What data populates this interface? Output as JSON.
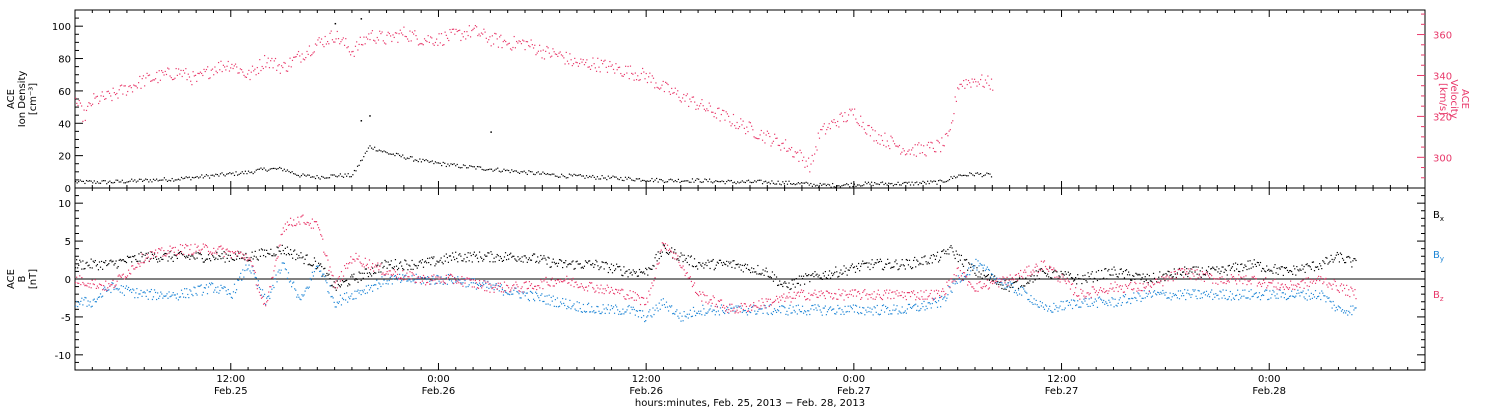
{
  "chart_data": [
    {
      "type": "scatter",
      "title": "",
      "x_range_hours": [
        0,
        78
      ],
      "ylim": [
        0,
        110
      ],
      "ylabel_lines": [
        "ACE",
        "Ion Density",
        "[cm⁻³]"
      ],
      "yticks": [
        0,
        20,
        40,
        60,
        80,
        100
      ],
      "ylim_right": [
        285,
        372
      ],
      "ylabel_right_lines": [
        "ACE",
        "Velocity",
        "[km/s]"
      ],
      "yticks_right": [
        300,
        320,
        340,
        360
      ],
      "series": [
        {
          "name": "",
          "axis": "left",
          "color": "#000000",
          "points": [
            [
              0,
              4
            ],
            [
              2,
              4
            ],
            [
              4,
              5
            ],
            [
              6,
              6
            ],
            [
              8,
              8
            ],
            [
              10,
              10
            ],
            [
              11,
              12
            ],
            [
              12,
              12
            ],
            [
              13,
              8
            ],
            [
              14,
              7
            ],
            [
              15,
              8
            ],
            [
              16,
              8
            ],
            [
              17,
              26
            ],
            [
              18,
              22
            ],
            [
              20,
              17
            ],
            [
              22,
              14
            ],
            [
              24,
              12
            ],
            [
              26,
              10
            ],
            [
              28,
              8
            ],
            [
              30,
              7
            ],
            [
              32,
              6
            ],
            [
              34,
              5
            ],
            [
              36,
              5
            ],
            [
              38,
              4
            ],
            [
              40,
              4
            ],
            [
              42,
              3
            ],
            [
              43,
              2
            ],
            [
              44,
              2
            ],
            [
              46,
              3
            ],
            [
              48,
              3
            ],
            [
              50,
              4
            ],
            [
              51,
              8
            ],
            [
              52,
              9
            ],
            [
              53,
              8
            ]
          ],
          "outliers": [
            [
              16.5,
              105
            ],
            [
              17,
              45
            ],
            [
              16.5,
              42
            ],
            [
              15,
              102
            ],
            [
              24,
              35
            ]
          ]
        },
        {
          "name": "",
          "axis": "right",
          "color": "#e8386a",
          "points": [
            [
              0,
              328
            ],
            [
              0.5,
              320
            ],
            [
              1,
              328
            ],
            [
              2,
              330
            ],
            [
              3,
              334
            ],
            [
              4,
              338
            ],
            [
              5,
              340
            ],
            [
              6,
              342
            ],
            [
              7,
              338
            ],
            [
              8,
              344
            ],
            [
              9,
              346
            ],
            [
              10,
              340
            ],
            [
              11,
              348
            ],
            [
              12,
              344
            ],
            [
              13,
              350
            ],
            [
              14,
              356
            ],
            [
              15,
              360
            ],
            [
              16,
              352
            ],
            [
              17,
              360
            ],
            [
              18,
              358
            ],
            [
              19,
              361
            ],
            [
              20,
              358
            ],
            [
              21,
              358
            ],
            [
              22,
              360
            ],
            [
              23,
              362
            ],
            [
              24,
              358
            ],
            [
              25,
              356
            ],
            [
              26,
              356
            ],
            [
              27,
              352
            ],
            [
              28,
              350
            ],
            [
              29,
              346
            ],
            [
              30,
              346
            ],
            [
              31,
              344
            ],
            [
              32,
              342
            ],
            [
              33,
              340
            ],
            [
              34,
              334
            ],
            [
              35,
              330
            ],
            [
              36,
              326
            ],
            [
              37,
              322
            ],
            [
              38,
              318
            ],
            [
              39,
              314
            ],
            [
              40,
              310
            ],
            [
              41,
              306
            ],
            [
              42,
              300
            ],
            [
              42.5,
              296
            ],
            [
              43,
              312
            ],
            [
              44,
              318
            ],
            [
              45,
              322
            ],
            [
              46,
              312
            ],
            [
              47,
              308
            ],
            [
              48,
              304
            ],
            [
              49,
              304
            ],
            [
              50,
              306
            ],
            [
              50.5,
              310
            ],
            [
              51,
              336
            ],
            [
              52,
              338
            ],
            [
              53,
              336
            ]
          ]
        }
      ]
    },
    {
      "type": "scatter",
      "title": "",
      "x_range_hours": [
        0,
        78
      ],
      "ylim": [
        -12,
        12
      ],
      "ylabel_lines": [
        "ACE",
        "B",
        "[nT]"
      ],
      "yticks": [
        -10,
        -5,
        0,
        5,
        10
      ],
      "zero_line": true,
      "series": [
        {
          "name": "Bx",
          "color": "#000000",
          "points": [
            [
              0,
              2
            ],
            [
              2,
              2
            ],
            [
              4,
              3
            ],
            [
              6,
              3
            ],
            [
              8,
              3
            ],
            [
              10,
              3
            ],
            [
              12,
              4
            ],
            [
              14,
              2
            ],
            [
              15,
              -1
            ],
            [
              16,
              0
            ],
            [
              18,
              2
            ],
            [
              20,
              2
            ],
            [
              22,
              3
            ],
            [
              24,
              3
            ],
            [
              26,
              3
            ],
            [
              28,
              2
            ],
            [
              30,
              2
            ],
            [
              32,
              1
            ],
            [
              33,
              1
            ],
            [
              34,
              4
            ],
            [
              35,
              3
            ],
            [
              36,
              2
            ],
            [
              38,
              2
            ],
            [
              40,
              1
            ],
            [
              41,
              -1
            ],
            [
              42,
              0
            ],
            [
              44,
              1
            ],
            [
              46,
              2
            ],
            [
              48,
              2
            ],
            [
              50,
              3
            ],
            [
              50.5,
              4
            ],
            [
              52,
              1
            ],
            [
              54,
              -1
            ],
            [
              56,
              1
            ],
            [
              58,
              0
            ],
            [
              60,
              1
            ],
            [
              62,
              0
            ],
            [
              64,
              1
            ],
            [
              66,
              1
            ],
            [
              68,
              2
            ],
            [
              70,
              1
            ],
            [
              72,
              2
            ],
            [
              73,
              3
            ],
            [
              74,
              2
            ]
          ]
        },
        {
          "name": "By",
          "color": "#1f86d6",
          "points": [
            [
              0,
              -3
            ],
            [
              1,
              -3
            ],
            [
              2,
              -1
            ],
            [
              4,
              -2
            ],
            [
              6,
              -2
            ],
            [
              8,
              -1
            ],
            [
              9,
              -2
            ],
            [
              10,
              2
            ],
            [
              11,
              -3
            ],
            [
              12,
              2
            ],
            [
              13,
              -3
            ],
            [
              14,
              2
            ],
            [
              15,
              -3
            ],
            [
              16,
              -2
            ],
            [
              18,
              0
            ],
            [
              20,
              0
            ],
            [
              22,
              0
            ],
            [
              24,
              -1
            ],
            [
              26,
              -2
            ],
            [
              28,
              -3
            ],
            [
              30,
              -4
            ],
            [
              32,
              -4
            ],
            [
              33,
              -5
            ],
            [
              34,
              -3
            ],
            [
              35,
              -5
            ],
            [
              36,
              -4
            ],
            [
              38,
              -4
            ],
            [
              40,
              -4
            ],
            [
              42,
              -4
            ],
            [
              44,
              -4
            ],
            [
              46,
              -4
            ],
            [
              48,
              -4
            ],
            [
              50,
              -3
            ],
            [
              51,
              0
            ],
            [
              52,
              2
            ],
            [
              54,
              -1
            ],
            [
              55,
              -2
            ],
            [
              56,
              -4
            ],
            [
              58,
              -3
            ],
            [
              60,
              -3
            ],
            [
              62,
              -2
            ],
            [
              64,
              -2
            ],
            [
              66,
              -2
            ],
            [
              68,
              -2
            ],
            [
              70,
              -2
            ],
            [
              72,
              -2
            ],
            [
              73,
              -4
            ],
            [
              74,
              -4
            ]
          ]
        },
        {
          "name": "Bz",
          "color": "#e8386a",
          "points": [
            [
              0,
              0
            ],
            [
              2,
              -1
            ],
            [
              4,
              3
            ],
            [
              6,
              4
            ],
            [
              8,
              4
            ],
            [
              10,
              3
            ],
            [
              11,
              -4
            ],
            [
              12,
              7
            ],
            [
              13,
              8
            ],
            [
              14,
              7
            ],
            [
              15,
              -1
            ],
            [
              16,
              3
            ],
            [
              18,
              1
            ],
            [
              20,
              0
            ],
            [
              22,
              0
            ],
            [
              24,
              -1
            ],
            [
              26,
              -1
            ],
            [
              28,
              0
            ],
            [
              30,
              -1
            ],
            [
              32,
              -2
            ],
            [
              33,
              -3
            ],
            [
              34,
              5
            ],
            [
              35,
              2
            ],
            [
              36,
              -2
            ],
            [
              37,
              -3
            ],
            [
              38,
              -4
            ],
            [
              40,
              -3
            ],
            [
              42,
              -2
            ],
            [
              44,
              -2
            ],
            [
              46,
              -2
            ],
            [
              48,
              -2
            ],
            [
              50,
              -2
            ],
            [
              51,
              1
            ],
            [
              52,
              -1
            ],
            [
              54,
              0
            ],
            [
              55,
              1
            ],
            [
              56,
              2
            ],
            [
              57,
              0
            ],
            [
              58,
              -2
            ],
            [
              60,
              -1
            ],
            [
              62,
              -1
            ],
            [
              64,
              1
            ],
            [
              66,
              0
            ],
            [
              68,
              0
            ],
            [
              70,
              -1
            ],
            [
              72,
              0
            ],
            [
              74,
              -2
            ]
          ]
        }
      ],
      "legend": {
        "placement": "right",
        "entries": [
          {
            "base": "B",
            "sub": "x",
            "color": "#000000"
          },
          {
            "base": "B",
            "sub": "y",
            "color": "#1f86d6"
          },
          {
            "base": "B",
            "sub": "z",
            "color": "#e8386a"
          }
        ]
      }
    }
  ],
  "x_axis": {
    "ticks": [
      {
        "hours": 9,
        "time": "12:00",
        "date": "Feb.25"
      },
      {
        "hours": 21,
        "time": "0:00",
        "date": "Feb.26"
      },
      {
        "hours": 33,
        "time": "12:00",
        "date": "Feb.26"
      },
      {
        "hours": 45,
        "time": "0:00",
        "date": "Feb.27"
      },
      {
        "hours": 57,
        "time": "12:00",
        "date": "Feb.27"
      },
      {
        "hours": 69,
        "time": "0:00",
        "date": "Feb.28"
      }
    ],
    "xlabel": "hours:minutes, Feb. 25, 2013 − Feb. 28, 2013"
  },
  "colors": {
    "black": "#000000",
    "pink": "#e8386a",
    "blue": "#1f86d6"
  }
}
